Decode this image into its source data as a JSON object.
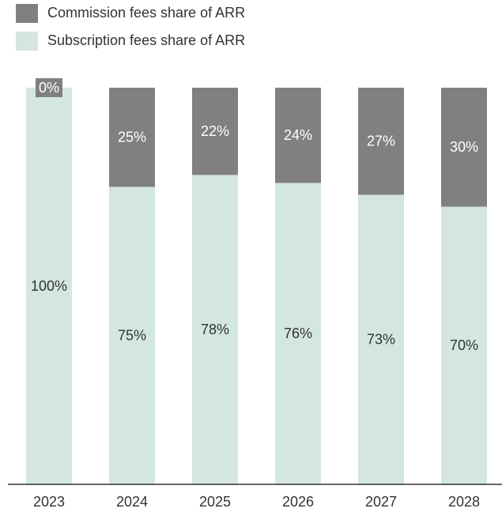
{
  "chart_data": {
    "type": "stacked_bar",
    "categories": [
      "2023",
      "2024",
      "2025",
      "2026",
      "2027",
      "2028"
    ],
    "series": [
      {
        "name": "Commission fees share of ARR",
        "color": "#808080",
        "values": [
          0,
          25,
          22,
          24,
          27,
          30
        ],
        "value_labels": [
          "0%",
          "25%",
          "22%",
          "24%",
          "27%",
          "30%"
        ]
      },
      {
        "name": "Subscription fees share of ARR",
        "color": "#d3e6e0",
        "values": [
          100,
          75,
          78,
          76,
          73,
          70
        ],
        "value_labels": [
          "100%",
          "75%",
          "78%",
          "76%",
          "73%",
          "70%"
        ]
      }
    ],
    "ylim": [
      0,
      100
    ]
  }
}
